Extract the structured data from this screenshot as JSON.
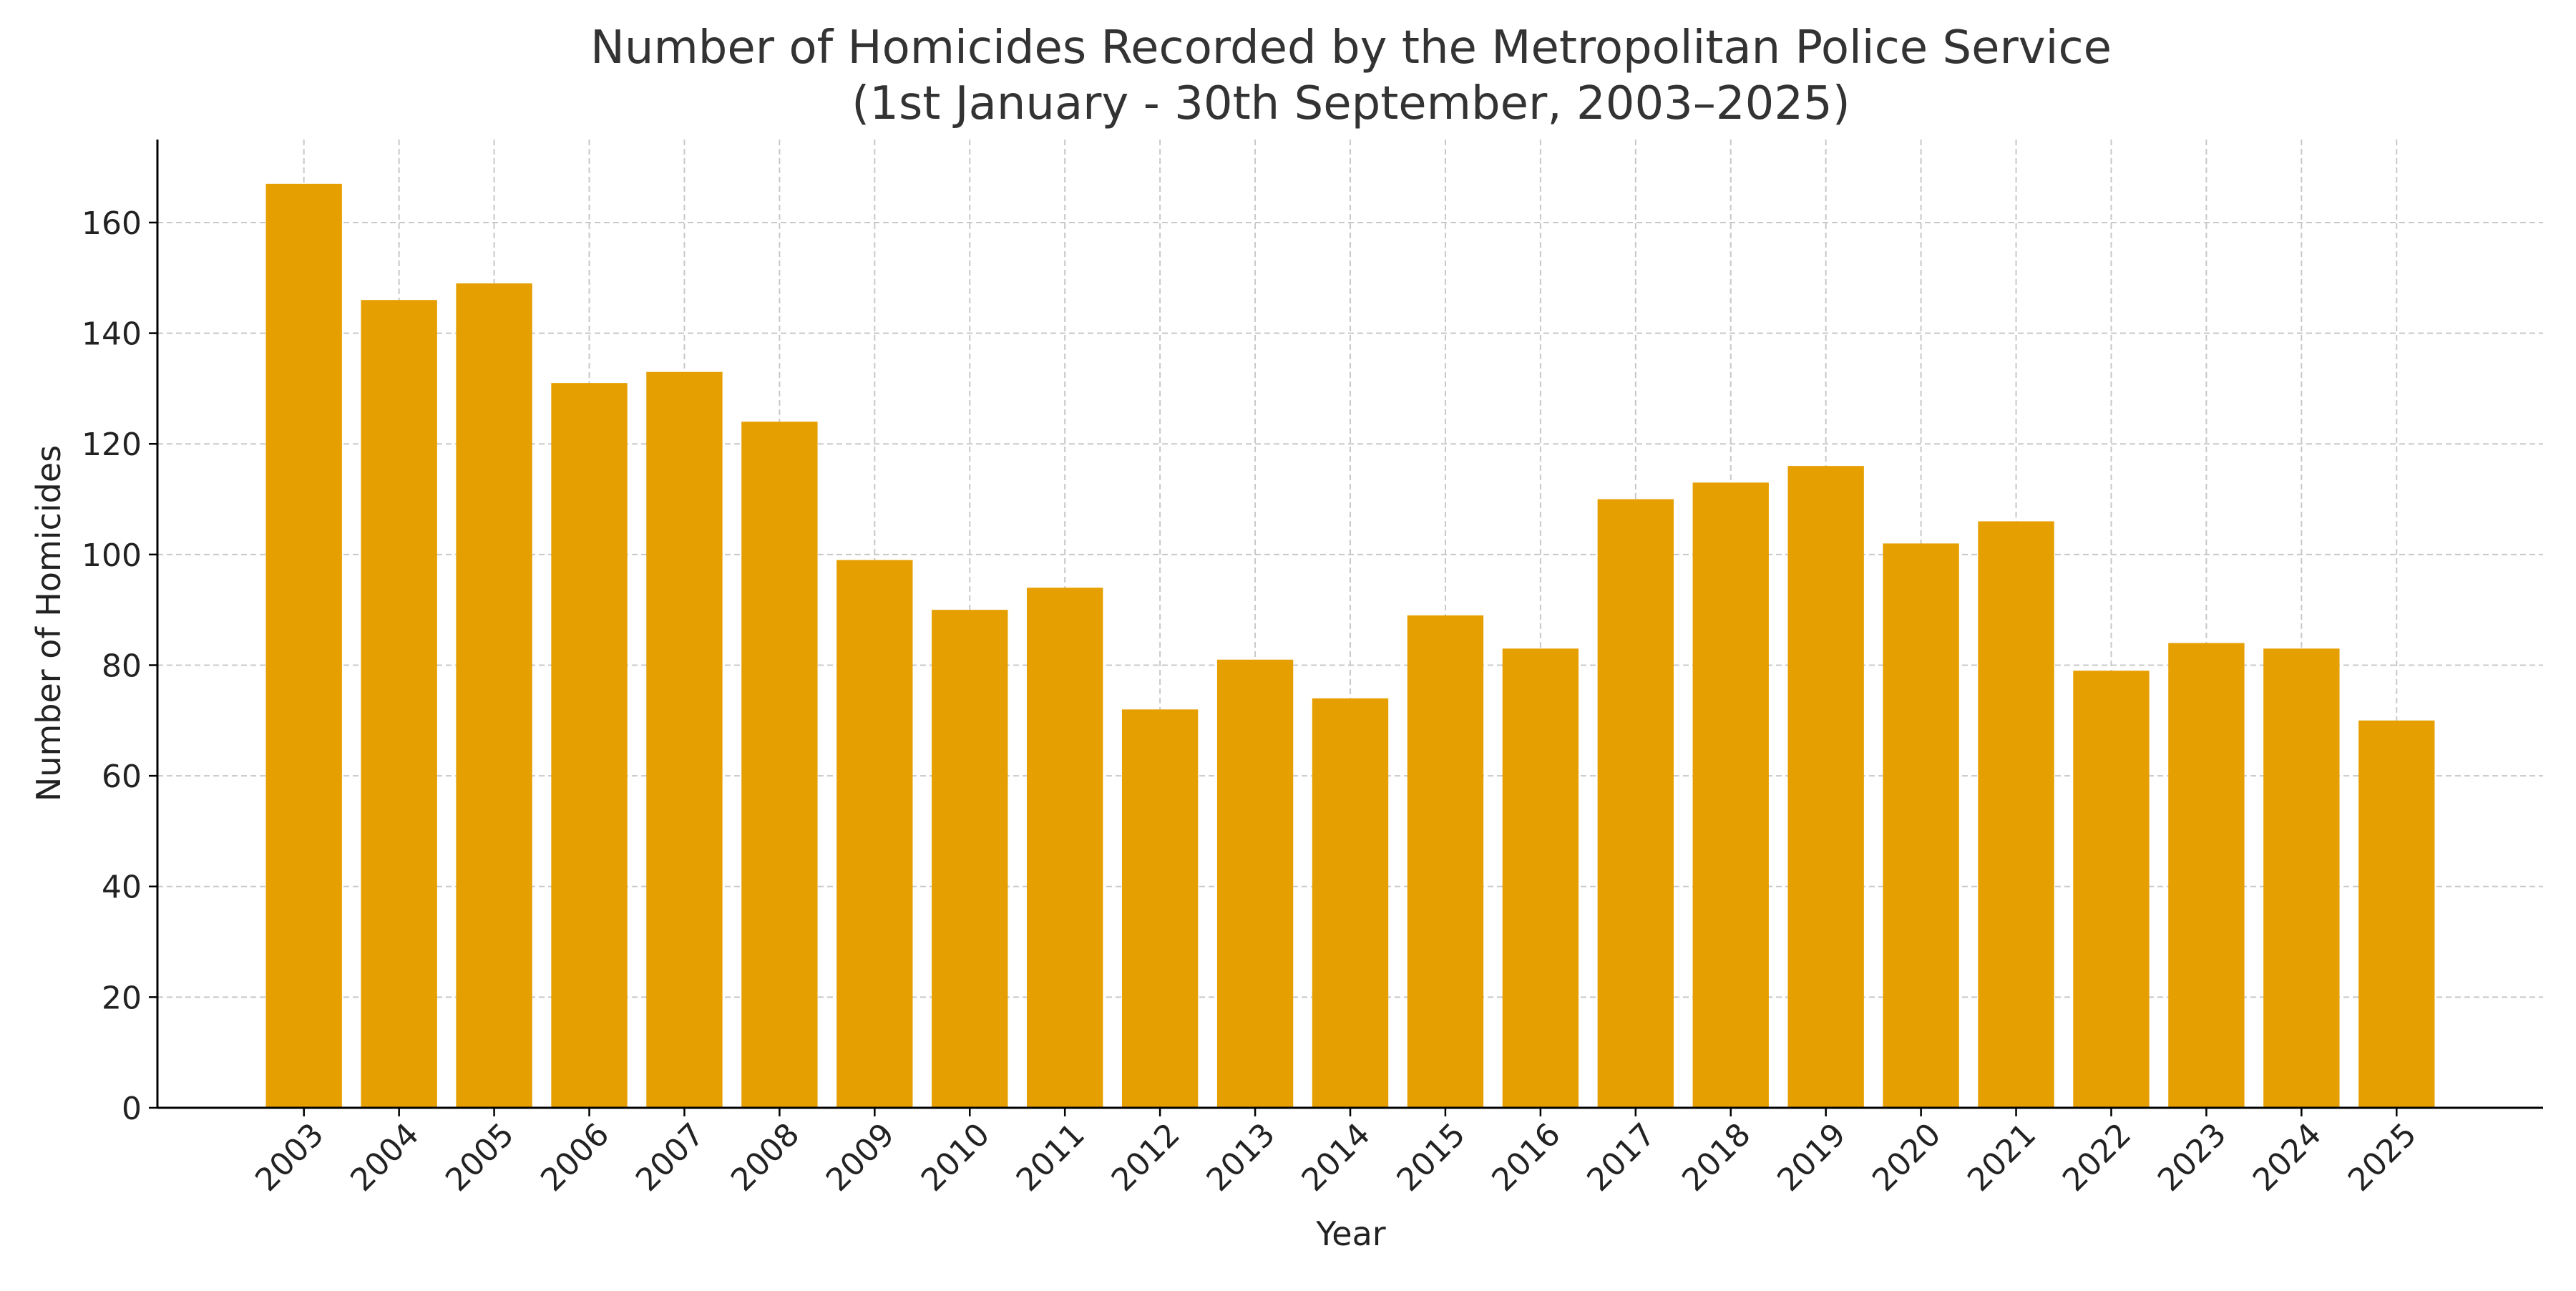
{
  "chart_data": {
    "type": "bar",
    "title": "Number of Homicides Recorded by the Metropolitan Police Service",
    "subtitle": "(1st January - 30th September, 2003–2025)",
    "xlabel": "Year",
    "ylabel": "Number of Homicides",
    "categories": [
      "2003",
      "2004",
      "2005",
      "2006",
      "2007",
      "2008",
      "2009",
      "2010",
      "2011",
      "2012",
      "2013",
      "2014",
      "2015",
      "2016",
      "2017",
      "2018",
      "2019",
      "2020",
      "2021",
      "2022",
      "2023",
      "2024",
      "2025"
    ],
    "values": [
      167,
      146,
      149,
      131,
      133,
      124,
      99,
      90,
      94,
      72,
      81,
      74,
      89,
      83,
      110,
      113,
      116,
      102,
      106,
      79,
      84,
      83,
      70
    ],
    "ylim": [
      0,
      175
    ],
    "yticks": [
      "0",
      "20",
      "40",
      "60",
      "80",
      "100",
      "120",
      "140",
      "160"
    ],
    "grid": true,
    "grid_style": "dashed",
    "bar_color": "#E69F00",
    "legend": "none"
  }
}
